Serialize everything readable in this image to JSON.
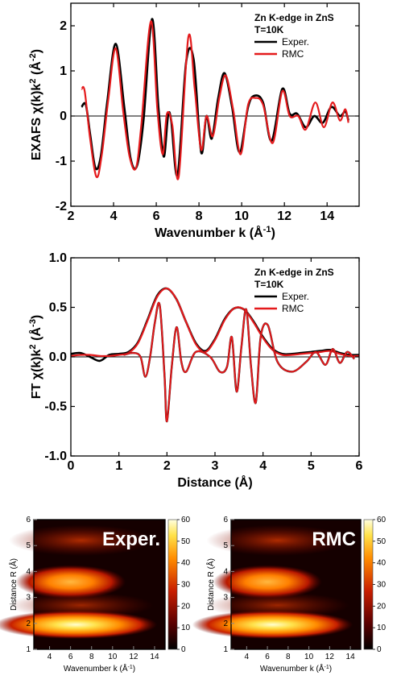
{
  "chart_data": [
    {
      "id": "exafs",
      "type": "line",
      "title_lines": [
        "Zn K-edge in ZnS",
        "T=10K"
      ],
      "xlabel": "Wavenumber k (Å",
      "xlabel_sup": "-1",
      "xlabel_tail": ")",
      "ylabel": "EXAFS χ(k)k",
      "ylabel_sup": "2",
      "ylabel_tail": " (Å",
      "ylabel_sup2": "-2",
      "ylabel_tail2": ")",
      "xlim": [
        2,
        15.5
      ],
      "ylim": [
        -2,
        2.5
      ],
      "xticks": [
        2,
        4,
        6,
        8,
        10,
        12,
        14
      ],
      "xticklabels": [
        "2",
        "4",
        "6",
        "8",
        "10",
        "12",
        "14"
      ],
      "yticks": [
        -2,
        -1,
        0,
        1,
        2
      ],
      "yticklabels": [
        "-2",
        "-1",
        "0",
        "1",
        "2"
      ],
      "legend_position": "top-right",
      "series": [
        {
          "name": "Exper.",
          "color": "#000000",
          "x": [
            2.5,
            2.7,
            2.9,
            3.15,
            3.4,
            3.7,
            4.1,
            4.5,
            4.8,
            5.1,
            5.4,
            5.8,
            6.1,
            6.35,
            6.55,
            6.7,
            7.0,
            7.4,
            7.75,
            8.1,
            8.35,
            8.6,
            8.9,
            9.2,
            9.55,
            9.9,
            10.3,
            10.6,
            11.0,
            11.4,
            11.9,
            12.25,
            12.6,
            13.0,
            13.4,
            13.8,
            14.2,
            14.6,
            14.85,
            15.0
          ],
          "y": [
            0.2,
            0.25,
            -0.4,
            -1.15,
            -0.9,
            0.3,
            1.6,
            0.2,
            -0.95,
            -1.1,
            -0.1,
            2.15,
            0.2,
            -0.9,
            0.0,
            -0.1,
            -1.3,
            1.2,
            1.25,
            -0.8,
            0.0,
            -0.5,
            0.4,
            0.95,
            0.2,
            -0.8,
            0.2,
            0.45,
            0.3,
            -0.55,
            0.6,
            0.05,
            0.05,
            -0.25,
            0.0,
            -0.15,
            0.2,
            0.0,
            0.1,
            -0.1
          ]
        },
        {
          "name": "RMC",
          "color": "#e41a1c",
          "x": [
            2.5,
            2.65,
            2.9,
            3.2,
            3.45,
            3.75,
            4.1,
            4.45,
            4.75,
            5.05,
            5.3,
            5.75,
            6.05,
            6.3,
            6.5,
            6.75,
            7.05,
            7.5,
            7.8,
            8.1,
            8.35,
            8.65,
            8.95,
            9.25,
            9.6,
            9.95,
            10.3,
            10.65,
            11.0,
            11.45,
            11.9,
            12.25,
            12.65,
            13.0,
            13.45,
            13.85,
            14.25,
            14.6,
            14.85,
            15.0
          ],
          "y": [
            0.6,
            0.55,
            -0.5,
            -1.35,
            -0.85,
            0.35,
            1.5,
            0.1,
            -0.9,
            -1.15,
            -0.2,
            2.1,
            0.15,
            -0.85,
            0.05,
            -0.2,
            -1.35,
            1.75,
            0.6,
            -0.75,
            0.0,
            -0.45,
            0.4,
            0.9,
            0.15,
            -0.85,
            0.25,
            0.4,
            0.25,
            -0.6,
            0.55,
            0.0,
            0.0,
            -0.3,
            0.3,
            -0.25,
            0.3,
            -0.1,
            0.15,
            -0.15
          ]
        }
      ]
    },
    {
      "id": "ft",
      "type": "line",
      "title_lines": [
        "Zn K-edge in ZnS",
        "T=10K"
      ],
      "xlabel": "Distance (Å)",
      "ylabel": "FT χ(k)k",
      "ylabel_sup": "2",
      "ylabel_tail": " (Å",
      "ylabel_sup2": "-3",
      "ylabel_tail2": ")",
      "xlim": [
        0,
        6
      ],
      "ylim": [
        -1.0,
        1.0
      ],
      "xticks": [
        0,
        1,
        2,
        3,
        4,
        5,
        6
      ],
      "xticklabels": [
        "0",
        "1",
        "2",
        "3",
        "4",
        "5",
        "6"
      ],
      "yticks": [
        -1.0,
        -0.5,
        0.0,
        0.5,
        1.0
      ],
      "yticklabels": [
        "-1.0",
        "-0.5",
        "0.0",
        "0.5",
        "1.0"
      ],
      "legend_position": "top-right",
      "series": [
        {
          "name": "Exper.",
          "color": "#000000",
          "x": [
            0,
            0.2,
            0.4,
            0.6,
            0.8,
            1.0,
            1.2,
            1.4,
            1.6,
            1.8,
            2.0,
            2.2,
            2.4,
            2.6,
            2.8,
            3.0,
            3.2,
            3.4,
            3.6,
            3.8,
            4.0,
            4.2,
            4.4,
            4.6,
            4.8,
            5.0,
            5.2,
            5.4,
            5.6,
            5.8,
            6.0
          ],
          "y": [
            0.03,
            0.04,
            0.0,
            -0.04,
            0.02,
            0.03,
            0.05,
            0.15,
            0.38,
            0.62,
            0.69,
            0.58,
            0.35,
            0.14,
            0.06,
            0.18,
            0.38,
            0.49,
            0.48,
            0.36,
            0.2,
            0.08,
            0.03,
            0.03,
            0.04,
            0.05,
            0.06,
            0.07,
            0.04,
            0.02,
            0.02
          ]
        },
        {
          "name": "RMC",
          "color": "#e41a1c",
          "x": [
            0,
            0.2,
            0.4,
            0.6,
            0.8,
            1.0,
            1.2,
            1.4,
            1.6,
            1.8,
            2.0,
            2.2,
            2.4,
            2.6,
            2.8,
            3.0,
            3.2,
            3.4,
            3.6,
            3.8,
            4.0,
            4.2,
            4.4,
            4.6,
            4.8,
            5.0,
            5.2,
            5.4,
            5.6,
            5.8,
            6.0
          ],
          "y": [
            0.01,
            0.02,
            0.02,
            0.01,
            0.01,
            0.02,
            0.04,
            0.14,
            0.37,
            0.61,
            0.69,
            0.58,
            0.35,
            0.13,
            0.05,
            0.17,
            0.37,
            0.49,
            0.48,
            0.35,
            0.19,
            0.07,
            0.02,
            0.02,
            0.03,
            0.04,
            0.05,
            0.06,
            0.03,
            0.01,
            0.01
          ]
        }
      ],
      "oscillating_parts": {
        "x": [
          1.1,
          1.3,
          1.45,
          1.55,
          1.65,
          1.75,
          1.85,
          1.95,
          2.0,
          2.1,
          2.2,
          2.3,
          2.4,
          2.6,
          2.9,
          3.1,
          3.25,
          3.35,
          3.45,
          3.55,
          3.65,
          3.75,
          3.85,
          3.95,
          4.1,
          4.3,
          4.6,
          4.9,
          5.1,
          5.3,
          5.45,
          5.6,
          5.75,
          5.9
        ],
        "y": [
          0.02,
          0.04,
          0.0,
          -0.2,
          0.0,
          0.35,
          0.52,
          -0.2,
          -0.65,
          -0.1,
          0.3,
          -0.05,
          -0.15,
          0.05,
          0.0,
          -0.15,
          -0.1,
          0.2,
          -0.35,
          0.1,
          0.48,
          -0.1,
          -0.46,
          0.2,
          0.32,
          -0.05,
          -0.15,
          -0.05,
          0.05,
          -0.08,
          0.08,
          -0.06,
          0.05,
          -0.02
        ]
      }
    },
    {
      "id": "wavelet-exper",
      "type": "heatmap",
      "label": "Exper.",
      "xlabel": "Wavenumber k (Å",
      "xlabel_sup": "-1",
      "xlabel_tail": ")",
      "ylabel": "Distance R (Å)",
      "xlim": [
        2.5,
        15
      ],
      "ylim": [
        1,
        6
      ],
      "xticks": [
        4,
        6,
        8,
        10,
        12,
        14
      ],
      "xticklabels": [
        "4",
        "6",
        "8",
        "10",
        "12",
        "14"
      ],
      "yticks": [
        1,
        2,
        3,
        4,
        5,
        6
      ],
      "yticklabels": [
        "1",
        "2",
        "3",
        "4",
        "5",
        "6"
      ],
      "colorbar": {
        "min": 0,
        "max": 60,
        "ticks": [
          0,
          10,
          20,
          30,
          40,
          50,
          60
        ],
        "ticklabels": [
          "0",
          "10",
          "20",
          "30",
          "40",
          "50",
          "60"
        ]
      },
      "peaks": [
        {
          "k": 6.5,
          "R": 1.95,
          "value": 60
        },
        {
          "k": 6.0,
          "R": 3.6,
          "value": 35
        }
      ]
    },
    {
      "id": "wavelet-rmc",
      "type": "heatmap",
      "label": "RMC",
      "xlabel": "Wavenumber k (Å",
      "xlabel_sup": "-1",
      "xlabel_tail": ")",
      "ylabel": "Distance R (Å)",
      "xlim": [
        2.5,
        15
      ],
      "ylim": [
        1,
        6
      ],
      "xticks": [
        4,
        6,
        8,
        10,
        12,
        14
      ],
      "xticklabels": [
        "4",
        "6",
        "8",
        "10",
        "12",
        "14"
      ],
      "yticks": [
        1,
        2,
        3,
        4,
        5,
        6
      ],
      "yticklabels": [
        "1",
        "2",
        "3",
        "4",
        "5",
        "6"
      ],
      "colorbar": {
        "min": 0,
        "max": 60,
        "ticks": [
          0,
          10,
          20,
          30,
          40,
          50,
          60
        ],
        "ticklabels": [
          "0",
          "10",
          "20",
          "30",
          "40",
          "50",
          "60"
        ]
      },
      "peaks": [
        {
          "k": 6.5,
          "R": 1.95,
          "value": 60
        },
        {
          "k": 6.0,
          "R": 3.6,
          "value": 35
        }
      ]
    }
  ]
}
